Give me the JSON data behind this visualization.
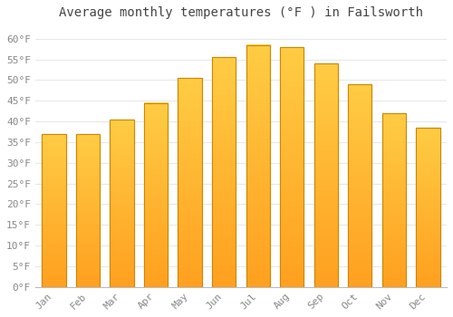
{
  "title": "Average monthly temperatures (°F ) in Failsworth",
  "months": [
    "Jan",
    "Feb",
    "Mar",
    "Apr",
    "May",
    "Jun",
    "Jul",
    "Aug",
    "Sep",
    "Oct",
    "Nov",
    "Dec"
  ],
  "values": [
    37,
    37,
    40.5,
    44.5,
    50.5,
    55.5,
    58.5,
    58,
    54,
    49,
    42,
    38.5
  ],
  "bar_color_light": "#FFCC44",
  "bar_color_dark": "#FFA020",
  "bar_edge_color": "#CC8800",
  "ylim": [
    0,
    63
  ],
  "yticks": [
    0,
    5,
    10,
    15,
    20,
    25,
    30,
    35,
    40,
    45,
    50,
    55,
    60
  ],
  "background_color": "#ffffff",
  "grid_color": "#e8e8e8",
  "title_fontsize": 10,
  "tick_fontsize": 8,
  "font_family": "monospace"
}
